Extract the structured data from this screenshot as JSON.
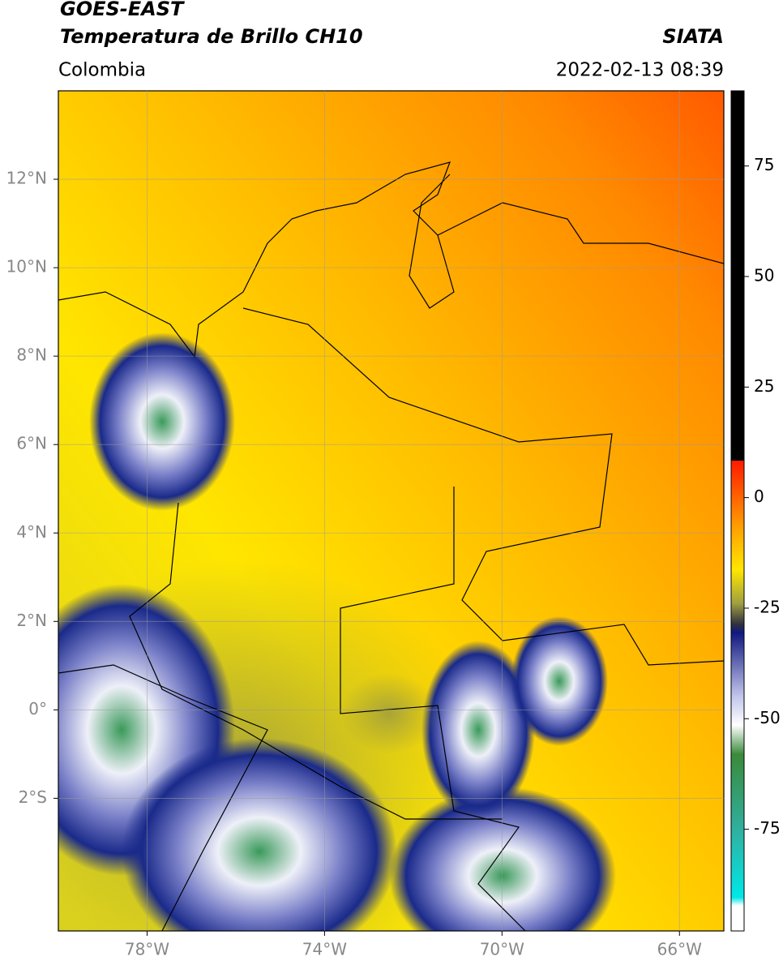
{
  "header": {
    "title": "GOES-EAST",
    "subtitle": "Temperatura de Brillo CH10",
    "source": "SIATA",
    "region": "Colombia",
    "datetime": "2022-02-13 08:39"
  },
  "map": {
    "lonlim": [
      -80,
      -65
    ],
    "latlim": [
      -5,
      14
    ],
    "lon_ticks": [
      {
        "value": -78,
        "label": "78°W"
      },
      {
        "value": -74,
        "label": "74°W"
      },
      {
        "value": -70,
        "label": "70°W"
      },
      {
        "value": -66,
        "label": "66°W"
      }
    ],
    "lat_ticks": [
      {
        "value": 12,
        "label": "12°N"
      },
      {
        "value": 10,
        "label": "10°N"
      },
      {
        "value": 8,
        "label": "8°N"
      },
      {
        "value": 6,
        "label": "6°N"
      },
      {
        "value": 4,
        "label": "4°N"
      },
      {
        "value": 2,
        "label": "2°N"
      },
      {
        "value": 0,
        "label": "0°"
      },
      {
        "value": -2,
        "label": "2°S"
      }
    ],
    "grid": true
  },
  "colorbar": {
    "lim": [
      -98,
      92
    ],
    "ticks": [
      75,
      50,
      25,
      0,
      -25,
      -50,
      -75
    ]
  }
}
